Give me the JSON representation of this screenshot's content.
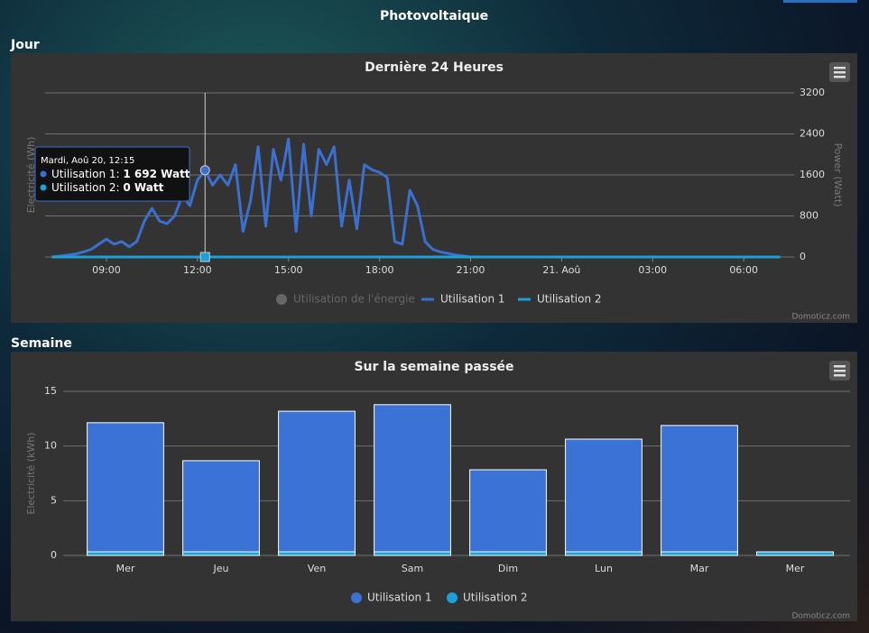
{
  "page_title": "Photovoltaique",
  "sections": [
    "Jour",
    "Semaine"
  ],
  "credit": "Domoticz.com",
  "chart_data": [
    {
      "type": "line",
      "title": "Dernière 24 Heures",
      "ylabel": "Electricité (Wh)",
      "y2label": "Power (Watt)",
      "x": [
        7.2,
        7.5,
        8,
        8.25,
        8.5,
        8.75,
        9,
        9.25,
        9.5,
        9.75,
        10,
        10.25,
        10.5,
        10.75,
        11,
        11.25,
        11.5,
        11.75,
        12,
        12.25,
        12.5,
        12.75,
        13,
        13.25,
        13.5,
        13.75,
        14,
        14.25,
        14.5,
        14.75,
        15,
        15.25,
        15.5,
        15.75,
        16,
        16.25,
        16.5,
        16.75,
        17,
        17.25,
        17.5,
        17.75,
        18,
        18.25,
        18.5,
        18.75,
        19,
        19.25,
        19.5,
        19.75,
        20,
        20.5,
        21,
        31.2
      ],
      "series": [
        {
          "name": "Utilisation 1",
          "color": "#3b6fd0",
          "axis": "y2",
          "values": [
            0,
            20,
            60,
            100,
            150,
            250,
            350,
            250,
            300,
            200,
            300,
            700,
            950,
            700,
            650,
            800,
            1200,
            1000,
            1500,
            1692,
            1400,
            1600,
            1400,
            1800,
            500,
            1100,
            2150,
            600,
            2100,
            1500,
            2300,
            500,
            2200,
            800,
            2100,
            1800,
            2150,
            600,
            1500,
            550,
            1800,
            1700,
            1650,
            1550,
            300,
            250,
            1300,
            1000,
            300,
            150,
            100,
            40,
            0,
            0
          ]
        },
        {
          "name": "Utilisation 2",
          "color": "#1aa1d8",
          "axis": "y2",
          "values": [
            0,
            0,
            0,
            0,
            0,
            0,
            0,
            0,
            0,
            0,
            0,
            0,
            0,
            0,
            0,
            0,
            0,
            0,
            0,
            0,
            0,
            0,
            0,
            0,
            0,
            0,
            0,
            0,
            0,
            0,
            0,
            0,
            0,
            0,
            0,
            0,
            0,
            0,
            0,
            0,
            0,
            0,
            0,
            0,
            0,
            0,
            0,
            0,
            0,
            0,
            0,
            0,
            0,
            0
          ]
        }
      ],
      "hidden_series": [
        {
          "name": "Utilisation de l'énergie",
          "color": "#666666"
        }
      ],
      "xlim": [
        6.98,
        31.66
      ],
      "xticks": [
        {
          "value": 9,
          "label": "09:00"
        },
        {
          "value": 12,
          "label": "12:00"
        },
        {
          "value": 15,
          "label": "15:00"
        },
        {
          "value": 18,
          "label": "18:00"
        },
        {
          "value": 21,
          "label": "21:00"
        },
        {
          "value": 24,
          "label": "21. Aoû"
        },
        {
          "value": 27,
          "label": "03:00"
        },
        {
          "value": 30,
          "label": "06:00"
        }
      ],
      "y2lim": [
        0,
        3200
      ],
      "y2ticks": [
        0,
        800,
        1600,
        2400,
        3200
      ],
      "grid": true,
      "tooltip": {
        "x": 12.25,
        "title": "Mardi, Aoû 20, 12:15",
        "items": [
          {
            "label": "Utilisation 1:",
            "value": "1 692 Watt"
          },
          {
            "label": "Utilisation 2:",
            "value": "0 Watt"
          }
        ]
      }
    },
    {
      "type": "bar",
      "stacked": true,
      "title": "Sur la semaine passée",
      "ylabel": "Electricité (kWh)",
      "categories": [
        "Mer",
        "Jeu",
        "Ven",
        "Sam",
        "Dim",
        "Lun",
        "Mar",
        "Mer"
      ],
      "series": [
        {
          "name": "Utilisation 1",
          "color": "#3a72d6",
          "values": [
            11.8,
            8.33,
            12.85,
            13.45,
            7.5,
            10.3,
            11.55,
            0
          ]
        },
        {
          "name": "Utilisation 2",
          "color": "#1aa1d8",
          "values": [
            0.33,
            0.33,
            0.33,
            0.33,
            0.33,
            0.33,
            0.33,
            0.33
          ]
        }
      ],
      "ylim": [
        0,
        15
      ],
      "yticks": [
        0,
        5,
        10,
        15
      ],
      "grid": true
    }
  ]
}
